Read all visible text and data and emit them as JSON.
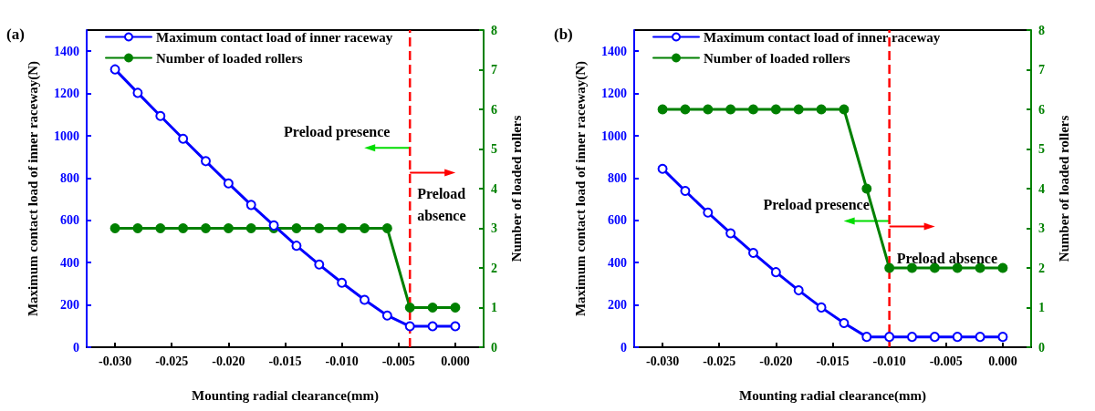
{
  "chart_data": [
    {
      "type": "line",
      "title": "(a)",
      "xlabel": "Mounting radial clearance(mm)",
      "ylabel": "Maximum contact load of inner raceway(N)",
      "y2label": "Number of loaded rollers",
      "x": [
        -0.03,
        -0.028,
        -0.026,
        -0.024,
        -0.022,
        -0.02,
        -0.018,
        -0.016,
        -0.014,
        -0.012,
        -0.01,
        -0.008,
        -0.006,
        -0.004,
        -0.002,
        0.0
      ],
      "series": [
        {
          "name": "Maximum contact load of inner raceway",
          "color": "#0000ff",
          "values": [
            1314,
            1203,
            1094,
            986,
            880,
            775,
            673,
            576,
            480,
            391,
            305,
            224,
            150,
            99,
            99,
            99
          ]
        },
        {
          "name": "Number of loaded rollers",
          "color": "#008000",
          "axis": "y2",
          "values": [
            3,
            3,
            3,
            3,
            3,
            3,
            3,
            3,
            3,
            3,
            3,
            3,
            3,
            1,
            1,
            1
          ]
        }
      ],
      "xlim": [
        -0.0325,
        0.0025
      ],
      "xticks": [
        {
          "value": -0.03,
          "label": "-0.030"
        },
        {
          "value": -0.025,
          "label": "-0.025"
        },
        {
          "value": -0.02,
          "label": "-0.020"
        },
        {
          "value": -0.015,
          "label": "-0.015"
        },
        {
          "value": -0.01,
          "label": "-0.010"
        },
        {
          "value": -0.005,
          "label": "-0.005"
        },
        {
          "value": 0,
          "label": "0.000"
        }
      ],
      "ylim": [
        0,
        1500
      ],
      "yticks": [
        0,
        200,
        400,
        600,
        800,
        1000,
        1200,
        1400
      ],
      "y2lim": [
        0,
        8
      ],
      "y2ticks": [
        0,
        1,
        2,
        3,
        4,
        5,
        6,
        7,
        8
      ],
      "ref_lines": [
        {
          "axis": "x",
          "value": -0.004,
          "color": "#ff0000",
          "line_style": "dashed"
        }
      ],
      "annotations": [
        "Preload presence",
        "Preload absence"
      ],
      "grid": false,
      "legend": "top",
      "marker": "circle",
      "line_style": "solid"
    },
    {
      "type": "line",
      "title": "(b)",
      "xlabel": "Mounting radial clearance(mm)",
      "ylabel": "Maximum contact load of inner raceway(N)",
      "y2label": "Number of loaded rollers",
      "x": [
        -0.03,
        -0.028,
        -0.026,
        -0.024,
        -0.022,
        -0.02,
        -0.018,
        -0.016,
        -0.014,
        -0.012,
        -0.01,
        -0.008,
        -0.006,
        -0.004,
        -0.002,
        0.0
      ],
      "series": [
        {
          "name": "Maximum contact load of inner raceway",
          "color": "#0000ff",
          "values": [
            844,
            739,
            637,
            539,
            446,
            355,
            269,
            188,
            114,
            49,
            49,
            49,
            49,
            49,
            49,
            49
          ]
        },
        {
          "name": "Number of loaded rollers",
          "color": "#008000",
          "axis": "y2",
          "values": [
            6,
            6,
            6,
            6,
            6,
            6,
            6,
            6,
            6,
            4,
            2,
            2,
            2,
            2,
            2,
            2
          ]
        }
      ],
      "xlim": [
        -0.0325,
        0.0025
      ],
      "xticks": [
        {
          "value": -0.03,
          "label": "-0.030"
        },
        {
          "value": -0.025,
          "label": "-0.025"
        },
        {
          "value": -0.02,
          "label": "-0.020"
        },
        {
          "value": -0.015,
          "label": "-0.015"
        },
        {
          "value": -0.01,
          "label": "-0.010"
        },
        {
          "value": -0.005,
          "label": "-0.005"
        },
        {
          "value": 0,
          "label": "0.000"
        }
      ],
      "ylim": [
        0,
        1500
      ],
      "yticks": [
        0,
        200,
        400,
        600,
        800,
        1000,
        1200,
        1400
      ],
      "y2lim": [
        0,
        8
      ],
      "y2ticks": [
        0,
        1,
        2,
        3,
        4,
        5,
        6,
        7,
        8
      ],
      "ref_lines": [
        {
          "axis": "x",
          "value": -0.01,
          "color": "#ff0000",
          "line_style": "dashed"
        }
      ],
      "annotations": [
        "Preload presence",
        "Preload absence"
      ],
      "grid": false,
      "legend": "top",
      "marker": "circle",
      "line_style": "solid"
    }
  ]
}
